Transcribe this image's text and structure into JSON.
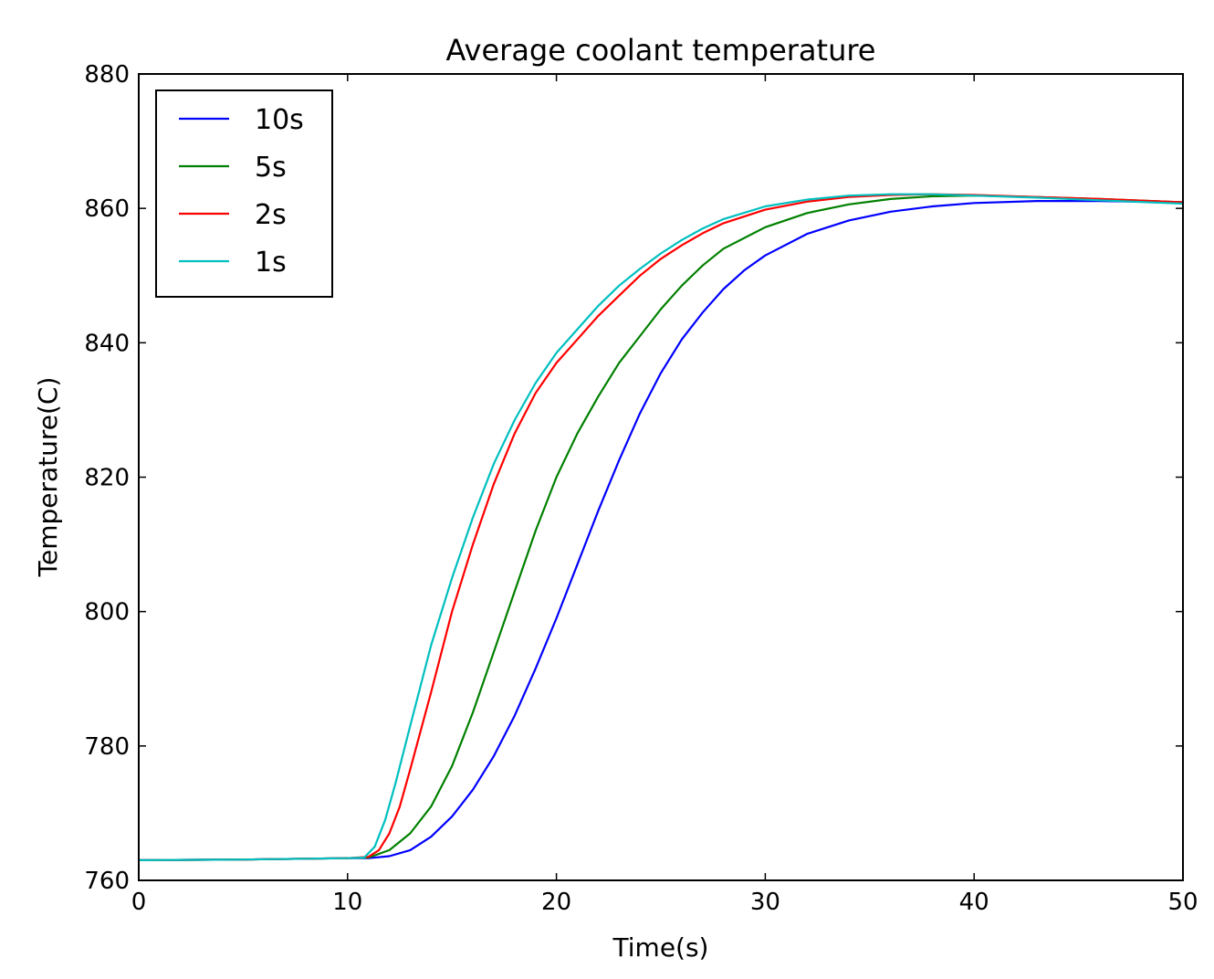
{
  "chart_data": {
    "type": "line",
    "title": "Average coolant temperature",
    "xlabel": "Time(s)",
    "ylabel": "Temperature(C)",
    "xlim": [
      0,
      50
    ],
    "ylim": [
      760,
      880
    ],
    "xticks": [
      0,
      10,
      20,
      30,
      40,
      50
    ],
    "yticks": [
      760,
      780,
      800,
      820,
      840,
      860,
      880
    ],
    "grid": false,
    "legend_position": "upper-left",
    "series": [
      {
        "name": "10s",
        "color": "#0000ff",
        "points": [
          [
            0,
            763
          ],
          [
            5,
            763.1
          ],
          [
            10,
            763.3
          ],
          [
            11,
            763.3
          ],
          [
            12,
            763.6
          ],
          [
            13,
            764.5
          ],
          [
            14,
            766.5
          ],
          [
            15,
            769.5
          ],
          [
            16,
            773.5
          ],
          [
            17,
            778.5
          ],
          [
            18,
            784.5
          ],
          [
            19,
            791.5
          ],
          [
            20,
            799
          ],
          [
            21,
            807
          ],
          [
            22,
            815
          ],
          [
            23,
            822.5
          ],
          [
            24,
            829.5
          ],
          [
            25,
            835.5
          ],
          [
            26,
            840.5
          ],
          [
            27,
            844.5
          ],
          [
            28,
            848
          ],
          [
            29,
            850.8
          ],
          [
            30,
            853
          ],
          [
            32,
            856.2
          ],
          [
            34,
            858.2
          ],
          [
            36,
            859.5
          ],
          [
            38,
            860.3
          ],
          [
            40,
            860.8
          ],
          [
            43,
            861.1
          ],
          [
            46,
            861.1
          ],
          [
            50,
            860.9
          ]
        ]
      },
      {
        "name": "5s",
        "color": "#008000",
        "points": [
          [
            0,
            763
          ],
          [
            5,
            763.1
          ],
          [
            10,
            763.3
          ],
          [
            11,
            763.4
          ],
          [
            12,
            764.5
          ],
          [
            13,
            767
          ],
          [
            14,
            771
          ],
          [
            15,
            777
          ],
          [
            16,
            785
          ],
          [
            17,
            794
          ],
          [
            18,
            803
          ],
          [
            19,
            812
          ],
          [
            20,
            820
          ],
          [
            21,
            826.5
          ],
          [
            22,
            832
          ],
          [
            23,
            837
          ],
          [
            24,
            841
          ],
          [
            25,
            845
          ],
          [
            26,
            848.5
          ],
          [
            27,
            851.5
          ],
          [
            28,
            854
          ],
          [
            30,
            857.2
          ],
          [
            32,
            859.3
          ],
          [
            34,
            860.6
          ],
          [
            36,
            861.4
          ],
          [
            38,
            861.8
          ],
          [
            40,
            861.9
          ],
          [
            43,
            861.7
          ],
          [
            46,
            861.4
          ],
          [
            50,
            860.9
          ]
        ]
      },
      {
        "name": "2s",
        "color": "#ff0000",
        "points": [
          [
            0,
            763
          ],
          [
            5,
            763.1
          ],
          [
            10,
            763.3
          ],
          [
            11,
            763.5
          ],
          [
            11.5,
            764.5
          ],
          [
            12,
            767
          ],
          [
            12.5,
            771
          ],
          [
            13,
            776.5
          ],
          [
            14,
            788
          ],
          [
            15,
            800
          ],
          [
            16,
            810
          ],
          [
            17,
            819
          ],
          [
            18,
            826.5
          ],
          [
            19,
            832.5
          ],
          [
            20,
            837
          ],
          [
            21,
            840.5
          ],
          [
            22,
            844
          ],
          [
            23,
            847
          ],
          [
            24,
            850
          ],
          [
            25,
            852.5
          ],
          [
            26,
            854.5
          ],
          [
            27,
            856.3
          ],
          [
            28,
            857.8
          ],
          [
            30,
            859.8
          ],
          [
            32,
            861
          ],
          [
            34,
            861.7
          ],
          [
            36,
            862
          ],
          [
            38,
            862.1
          ],
          [
            40,
            862
          ],
          [
            43,
            861.7
          ],
          [
            46,
            861.4
          ],
          [
            50,
            860.9
          ]
        ]
      },
      {
        "name": "1s",
        "color": "#00bfbf",
        "points": [
          [
            0,
            763
          ],
          [
            5,
            763.1
          ],
          [
            10,
            763.3
          ],
          [
            10.8,
            763.4
          ],
          [
            11.3,
            765
          ],
          [
            11.8,
            769
          ],
          [
            12.3,
            774.5
          ],
          [
            13,
            783
          ],
          [
            14,
            795
          ],
          [
            15,
            805
          ],
          [
            16,
            814
          ],
          [
            17,
            822
          ],
          [
            18,
            828.5
          ],
          [
            19,
            834
          ],
          [
            20,
            838.5
          ],
          [
            21,
            842
          ],
          [
            22,
            845.5
          ],
          [
            23,
            848.5
          ],
          [
            24,
            851
          ],
          [
            25,
            853.3
          ],
          [
            26,
            855.3
          ],
          [
            27,
            857
          ],
          [
            28,
            858.4
          ],
          [
            30,
            860.3
          ],
          [
            32,
            861.3
          ],
          [
            34,
            861.9
          ],
          [
            36,
            862.1
          ],
          [
            38,
            862.1
          ],
          [
            40,
            861.9
          ],
          [
            43,
            861.6
          ],
          [
            46,
            861.2
          ],
          [
            50,
            860.7
          ]
        ]
      }
    ]
  }
}
